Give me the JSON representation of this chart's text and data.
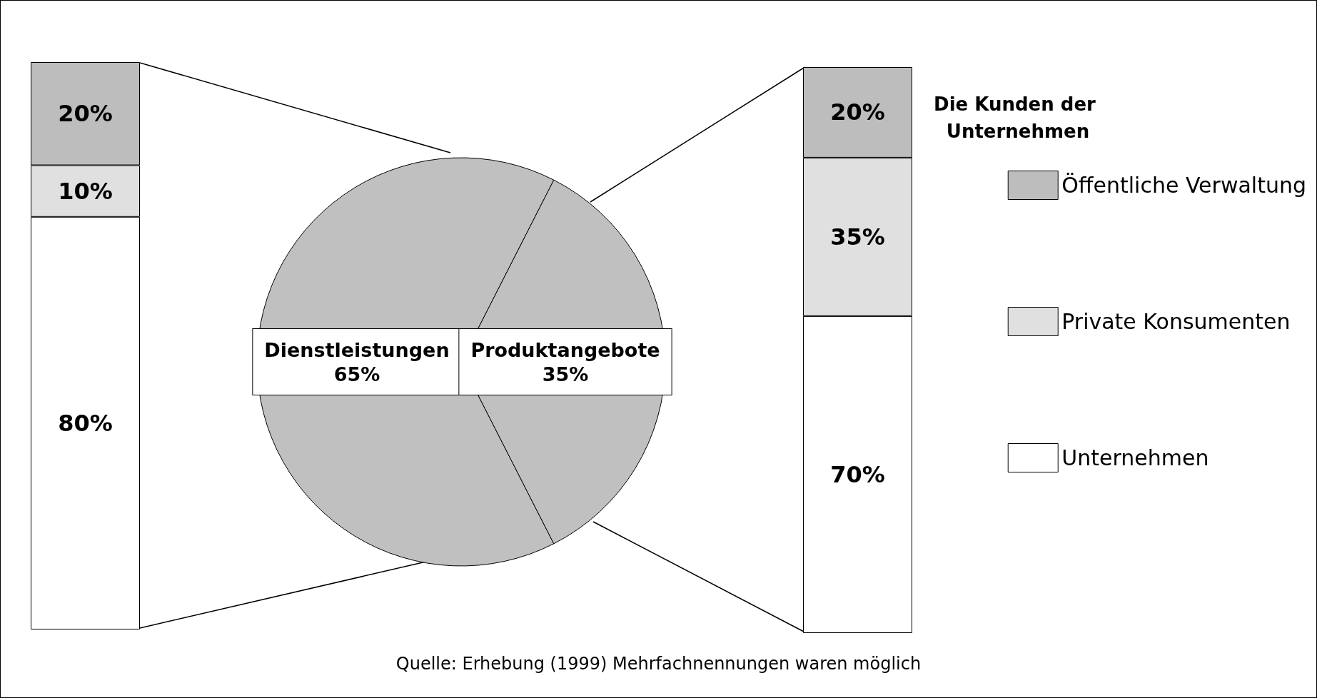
{
  "chart_data": [
    {
      "type": "pie",
      "categories": [
        "Dienstleistungen",
        "Produktangebote"
      ],
      "values": [
        65,
        35
      ],
      "colors": [
        "#c0c0c0",
        "#c0c0c0"
      ],
      "value_labels": [
        "65%",
        "35%"
      ],
      "annotations": [
        "Quelle: Erhebung (1999) Mehrfachnennungen waren möglich"
      ]
    },
    {
      "type": "bar",
      "stacked": true,
      "categories": [
        null
      ],
      "legend": false,
      "series": [
        {
          "color": "#ffffff",
          "values": [
            80
          ],
          "value_labels": [
            "80%"
          ]
        },
        {
          "color": "#e0e0e0",
          "values": [
            10
          ],
          "value_labels": [
            "10%"
          ]
        },
        {
          "color": "#bdbdbd",
          "values": [
            20
          ],
          "value_labels": [
            "20%"
          ]
        }
      ]
    },
    {
      "type": "bar",
      "stacked": true,
      "categories": [
        null
      ],
      "legend": "right",
      "legend_title": "Die Kunden der Unternehmen",
      "series": [
        {
          "name": "Unternehmen",
          "color": "#ffffff",
          "values": [
            70
          ],
          "value_labels": [
            "70%"
          ]
        },
        {
          "name": "Private Konsumenten",
          "color": "#e0e0e0",
          "values": [
            35
          ],
          "value_labels": [
            "35%"
          ]
        },
        {
          "name": "Öffentliche Verwaltung",
          "color": "#bdbdbd",
          "values": [
            20
          ],
          "value_labels": [
            "20%"
          ]
        }
      ]
    }
  ]
}
